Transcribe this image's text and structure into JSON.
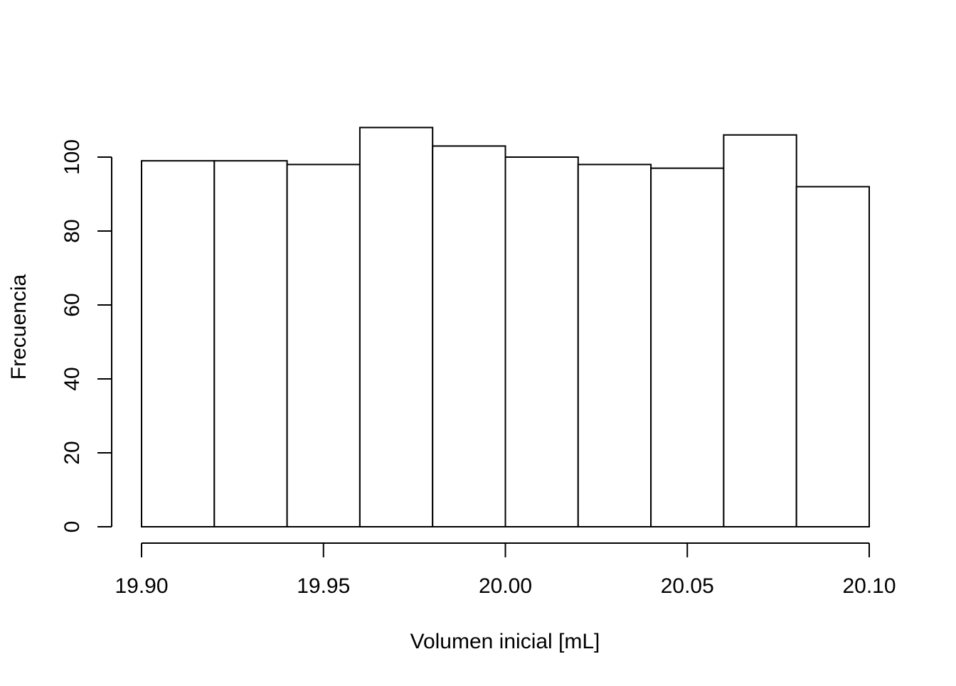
{
  "chart_data": {
    "type": "bar",
    "subtype": "histogram",
    "title": "",
    "xlabel": "Volumen inicial [mL]",
    "ylabel": "Frecuencia",
    "bins": [
      {
        "x0": 19.9,
        "x1": 19.92,
        "count": 99
      },
      {
        "x0": 19.92,
        "x1": 19.94,
        "count": 99
      },
      {
        "x0": 19.94,
        "x1": 19.96,
        "count": 98
      },
      {
        "x0": 19.96,
        "x1": 19.98,
        "count": 108
      },
      {
        "x0": 19.98,
        "x1": 20.0,
        "count": 103
      },
      {
        "x0": 20.0,
        "x1": 20.02,
        "count": 100
      },
      {
        "x0": 20.02,
        "x1": 20.04,
        "count": 98
      },
      {
        "x0": 20.04,
        "x1": 20.06,
        "count": 97
      },
      {
        "x0": 20.06,
        "x1": 20.08,
        "count": 106
      },
      {
        "x0": 20.08,
        "x1": 20.1,
        "count": 92
      }
    ],
    "xlim": [
      19.9,
      20.1
    ],
    "ylim": [
      0,
      108
    ],
    "x_ticks": [
      19.9,
      19.95,
      20.0,
      20.05,
      20.1
    ],
    "x_tick_labels": [
      "19.90",
      "19.95",
      "20.00",
      "20.05",
      "20.10"
    ],
    "y_ticks": [
      0,
      20,
      40,
      60,
      80,
      100
    ],
    "y_tick_labels": [
      "0",
      "20",
      "40",
      "60",
      "80",
      "100"
    ],
    "bar_fill": "#ffffff",
    "bar_stroke": "#000000",
    "grid": false,
    "legend": "none"
  }
}
